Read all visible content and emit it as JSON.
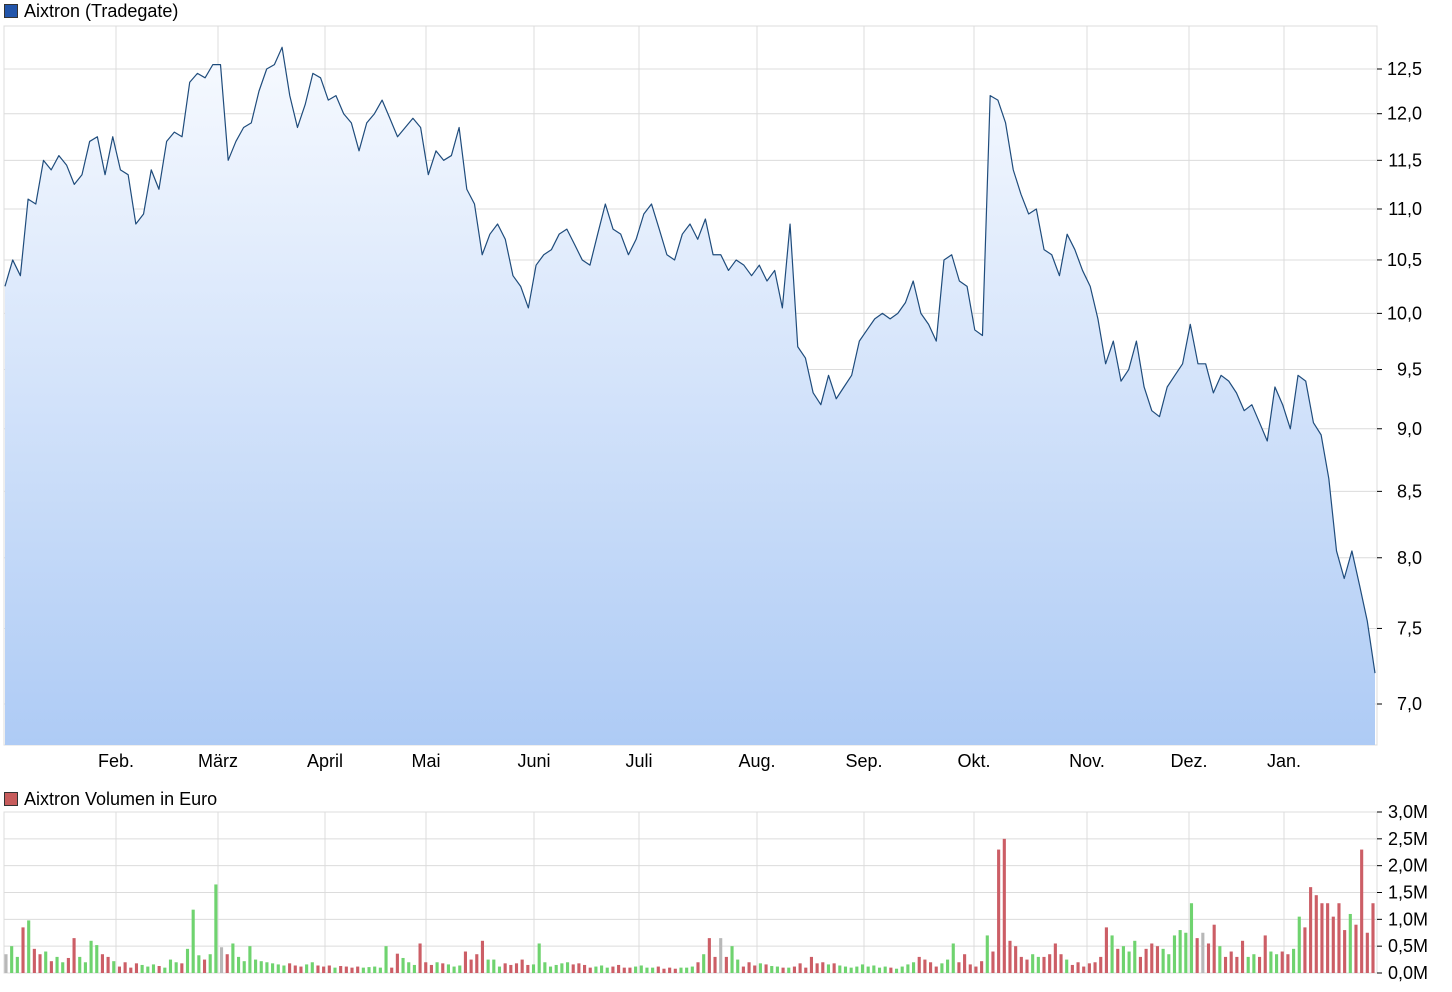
{
  "colors": {
    "price_swatch": "#2255aa",
    "price_line": "#1f4c7c",
    "price_fill_top": "#f7faff",
    "price_fill_bottom": "#aecbf5",
    "vol_swatch": "#c75c5c",
    "vol_up": "#6fd36f",
    "vol_down": "#cc5e66",
    "vol_neutral": "#b8b8b8",
    "grid": "#dcdcdc"
  },
  "chart_data": [
    {
      "type": "area",
      "legend": "Aixtron (Tradegate)",
      "x_labels": [
        "Feb.",
        "März",
        "April",
        "Mai",
        "Juni",
        "Juli",
        "Aug.",
        "Sep.",
        "Okt.",
        "Nov.",
        "Dez.",
        "Jan."
      ],
      "y_ticks": [
        "7,0",
        "7,5",
        "8,0",
        "8,5",
        "9,0",
        "9,5",
        "10,0",
        "10,5",
        "11,0",
        "11,5",
        "12,0",
        "12,5"
      ],
      "ylim": [
        6.7,
        12.9
      ],
      "y_scale": "log",
      "grid": true,
      "series": [
        {
          "values": [
            10.25,
            10.5,
            10.35,
            11.1,
            11.05,
            11.5,
            11.4,
            11.55,
            11.45,
            11.25,
            11.35,
            11.7,
            11.75,
            11.35,
            11.75,
            11.4,
            11.35,
            10.85,
            10.95,
            11.4,
            11.2,
            11.7,
            11.8,
            11.75,
            12.35,
            12.45,
            12.4,
            12.55,
            12.55,
            11.5,
            11.7,
            11.85,
            11.9,
            12.25,
            12.5,
            12.55,
            12.75,
            12.2,
            11.85,
            12.1,
            12.45,
            12.4,
            12.15,
            12.2,
            12.0,
            11.9,
            11.6,
            11.9,
            12.0,
            12.15,
            11.95,
            11.75,
            11.85,
            11.95,
            11.85,
            11.35,
            11.6,
            11.5,
            11.55,
            11.85,
            11.2,
            11.05,
            10.55,
            10.75,
            10.85,
            10.7,
            10.35,
            10.25,
            10.05,
            10.45,
            10.55,
            10.6,
            10.75,
            10.8,
            10.65,
            10.5,
            10.45,
            10.75,
            11.05,
            10.8,
            10.75,
            10.55,
            10.7,
            10.95,
            11.05,
            10.8,
            10.55,
            10.5,
            10.75,
            10.85,
            10.7,
            10.9,
            10.55,
            10.55,
            10.4,
            10.5,
            10.45,
            10.35,
            10.45,
            10.3,
            10.4,
            10.05,
            10.85,
            9.7,
            9.6,
            9.3,
            9.2,
            9.45,
            9.25,
            9.35,
            9.45,
            9.75,
            9.85,
            9.95,
            10.0,
            9.95,
            10.0,
            10.1,
            10.3,
            10.0,
            9.9,
            9.75,
            10.5,
            10.55,
            10.3,
            10.25,
            9.85,
            9.8,
            12.2,
            12.15,
            11.9,
            11.4,
            11.15,
            10.95,
            11.0,
            10.6,
            10.55,
            10.35,
            10.75,
            10.6,
            10.4,
            10.25,
            9.95,
            9.55,
            9.75,
            9.4,
            9.5,
            9.75,
            9.35,
            9.15,
            9.1,
            9.35,
            9.45,
            9.55,
            9.9,
            9.55,
            9.55,
            9.3,
            9.45,
            9.4,
            9.3,
            9.15,
            9.2,
            9.05,
            8.9,
            9.35,
            9.2,
            9.0,
            9.45,
            9.4,
            9.05,
            8.95,
            8.6,
            8.05,
            7.85,
            8.05,
            7.8,
            7.55,
            7.2
          ]
        }
      ]
    },
    {
      "type": "bar",
      "legend": "Aixtron Volumen in Euro",
      "y_ticks": [
        "0,0M",
        "0,5M",
        "1,0M",
        "1,5M",
        "2,0M",
        "2,5M",
        "3,0M"
      ],
      "ylim": [
        0,
        3.0
      ],
      "unit": "M",
      "grid": true,
      "series": [
        {
          "values": [
            0.35,
            0.5,
            0.3,
            0.85,
            0.98,
            0.45,
            0.35,
            0.4,
            0.22,
            0.3,
            0.2,
            0.28,
            0.65,
            0.3,
            0.2,
            0.6,
            0.52,
            0.35,
            0.3,
            0.22,
            0.12,
            0.2,
            0.1,
            0.18,
            0.15,
            0.12,
            0.16,
            0.13,
            0.1,
            0.25,
            0.2,
            0.18,
            0.45,
            1.18,
            0.33,
            0.25,
            0.35,
            1.65,
            0.48,
            0.35,
            0.55,
            0.3,
            0.22,
            0.5,
            0.25,
            0.22,
            0.2,
            0.18,
            0.16,
            0.14,
            0.18,
            0.14,
            0.12,
            0.16,
            0.2,
            0.14,
            0.12,
            0.14,
            0.1,
            0.13,
            0.12,
            0.1,
            0.12,
            0.1,
            0.11,
            0.12,
            0.1,
            0.5,
            0.1,
            0.36,
            0.28,
            0.2,
            0.15,
            0.55,
            0.2,
            0.15,
            0.2,
            0.18,
            0.16,
            0.12,
            0.14,
            0.4,
            0.25,
            0.35,
            0.6,
            0.25,
            0.25,
            0.12,
            0.18,
            0.15,
            0.18,
            0.25,
            0.15,
            0.16,
            0.55,
            0.2,
            0.12,
            0.15,
            0.18,
            0.2,
            0.16,
            0.18,
            0.15,
            0.1,
            0.12,
            0.14,
            0.1,
            0.12,
            0.15,
            0.1,
            0.1,
            0.12,
            0.14,
            0.1,
            0.1,
            0.12,
            0.08,
            0.1,
            0.08,
            0.1,
            0.1,
            0.12,
            0.2,
            0.35,
            0.65,
            0.3,
            0.65,
            0.3,
            0.5,
            0.25,
            0.12,
            0.2,
            0.14,
            0.18,
            0.16,
            0.13,
            0.12,
            0.1,
            0.1,
            0.12,
            0.18,
            0.1,
            0.3,
            0.18,
            0.2,
            0.16,
            0.18,
            0.14,
            0.12,
            0.1,
            0.12,
            0.16,
            0.12,
            0.14,
            0.1,
            0.12,
            0.1,
            0.08,
            0.12,
            0.16,
            0.2,
            0.3,
            0.25,
            0.2,
            0.12,
            0.18,
            0.25,
            0.55,
            0.2,
            0.35,
            0.16,
            0.12,
            0.22,
            0.7,
            0.4,
            2.3,
            2.5,
            0.6,
            0.5,
            0.3,
            0.25,
            0.35,
            0.3,
            0.3,
            0.35,
            0.55,
            0.35,
            0.25,
            0.15,
            0.2,
            0.12,
            0.18,
            0.2,
            0.3,
            0.85,
            0.7,
            0.45,
            0.5,
            0.4,
            0.6,
            0.3,
            0.45,
            0.55,
            0.5,
            0.45,
            0.35,
            0.7,
            0.8,
            0.75,
            1.3,
            0.65,
            0.75,
            0.55,
            0.9,
            0.5,
            0.3,
            0.4,
            0.3,
            0.6,
            0.3,
            0.35,
            0.3,
            0.7,
            0.4,
            0.35,
            0.4,
            0.35,
            0.45,
            1.05,
            0.85,
            1.6,
            1.45,
            1.3,
            1.3,
            1.05,
            1.3,
            0.8,
            1.1,
            0.9,
            2.3,
            0.75,
            1.3
          ]
        }
      ]
    }
  ]
}
